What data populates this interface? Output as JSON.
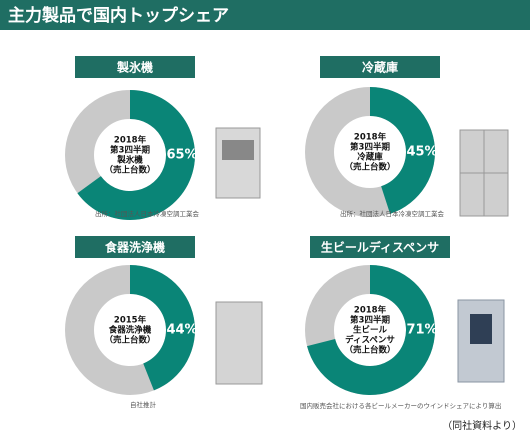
{
  "header": {
    "title": "主力製品で国内トップシェア"
  },
  "chart_data": [
    {
      "type": "pie",
      "title": "製氷機",
      "center_text": [
        "2018年",
        "第3四半期",
        "製氷機",
        "（売上台数）"
      ],
      "values": [
        65
      ],
      "value_labels": [
        "65%"
      ],
      "color": "#0a8577",
      "rest_color": "#c9c9c9",
      "source": "出所：社団法人日本冷凍空調工業会"
    },
    {
      "type": "pie",
      "title": "冷蔵庫",
      "center_text": [
        "2018年",
        "第3四半期",
        "冷蔵庫",
        "（売上台数）"
      ],
      "values": [
        45
      ],
      "value_labels": [
        "45%"
      ],
      "color": "#0a8577",
      "rest_color": "#c9c9c9",
      "source": "出所：社団法人日本冷凍空調工業会"
    },
    {
      "type": "pie",
      "title": "食器洗浄機",
      "center_text": [
        "2015年",
        "食器洗浄機",
        "（売上台数）"
      ],
      "values": [
        44
      ],
      "value_labels": [
        "44%"
      ],
      "color": "#0a8577",
      "rest_color": "#c9c9c9",
      "source": "自社推計"
    },
    {
      "type": "pie",
      "title": "生ビールディスペンサ",
      "center_text": [
        "2018年",
        "第3四半期",
        "生ビール",
        "ディスペンサ",
        "（売上台数）"
      ],
      "values": [
        71
      ],
      "value_labels": [
        "71%"
      ],
      "color": "#0a8577",
      "rest_color": "#c9c9c9",
      "source": "国内販売会社における各ビールメーカーのウインドシェアにより算出"
    }
  ],
  "footnote": "（同社資料より）"
}
